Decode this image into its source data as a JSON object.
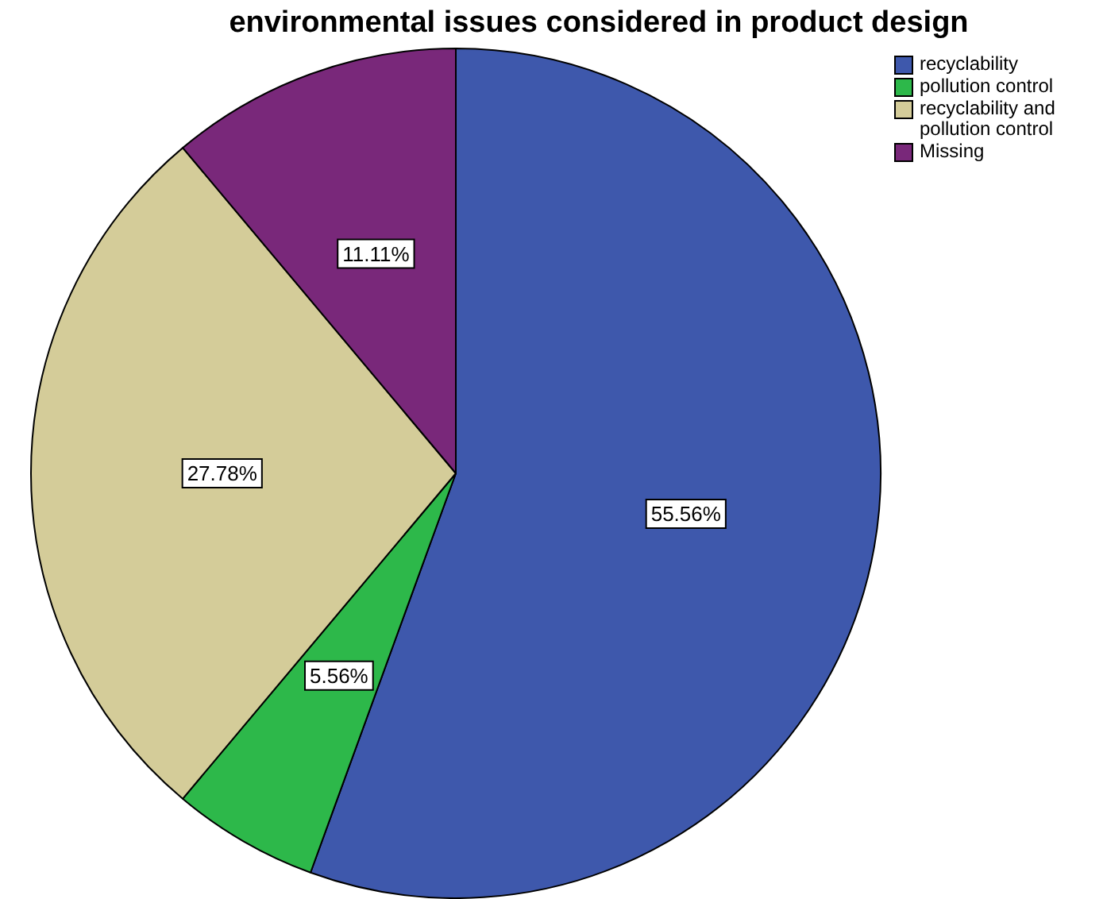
{
  "chart_data": {
    "type": "pie",
    "title": "environmental issues considered in product design",
    "categories": [
      "recyclability",
      "pollution control",
      "recyclability and pollution control",
      "Missing"
    ],
    "values": [
      55.56,
      5.56,
      27.78,
      11.11
    ],
    "colors": [
      "#3e58ac",
      "#2db84a",
      "#d4cc99",
      "#79287a"
    ],
    "value_labels": [
      "55.56%",
      "5.56%",
      "27.78%",
      "11.11%"
    ],
    "legend": "top right"
  }
}
